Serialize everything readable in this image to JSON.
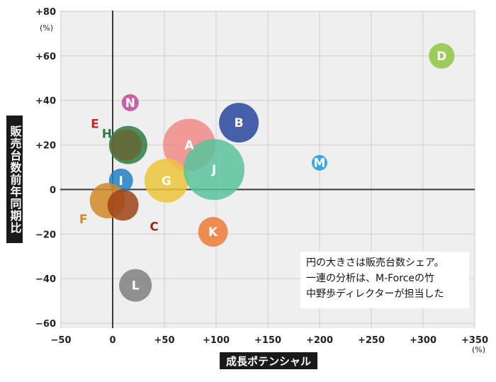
{
  "chart_data": {
    "type": "scatter",
    "subtype": "bubble",
    "xlabel": "成長ポテンシャル",
    "ylabel": "販売台数前年同期比",
    "x_unit": "(%)",
    "y_unit": "(%)",
    "xlim": [
      -50,
      350
    ],
    "ylim": [
      -60,
      80
    ],
    "x_ticks": [
      "−50",
      "0",
      "+50",
      "+100",
      "+150",
      "+200",
      "+250",
      "+300",
      "+350"
    ],
    "y_ticks": [
      "+80",
      "+60",
      "+40",
      "+20",
      "0",
      "−20",
      "−40",
      "−60"
    ],
    "grid": true,
    "note": [
      "円の大きさは販売台数シェア。",
      "一連の分析は、M-Forceの竹",
      "中野歩ディレクターが担当した"
    ],
    "points": [
      {
        "label": "N",
        "x": 17,
        "y": 39,
        "share": 12,
        "color": "#c2479a",
        "label_pos": "inside"
      },
      {
        "label": "H",
        "x": 15,
        "y": 20,
        "share": 27,
        "color": "#2f7a45",
        "label_pos": "outside"
      },
      {
        "label": "A",
        "x": 74,
        "y": 20,
        "share": 37,
        "color": "#ee8b86",
        "label_pos": "inside"
      },
      {
        "label": "B",
        "x": 122,
        "y": 30,
        "share": 28,
        "color": "#27469b",
        "label_pos": "inside"
      },
      {
        "label": "G",
        "x": 52,
        "y": 4,
        "share": 31,
        "color": "#ecc63b",
        "label_pos": "inside"
      },
      {
        "label": "J",
        "x": 98,
        "y": 9,
        "share": 43,
        "color": "#59c39b",
        "label_pos": "inside"
      },
      {
        "label": "E",
        "x": 13,
        "y": 20,
        "share": 22,
        "color": "#666633",
        "label_pos": "outside"
      },
      {
        "label": "I",
        "x": 8,
        "y": 4,
        "share": 17,
        "color": "#1f80c4",
        "label_pos": "inside"
      },
      {
        "label": "F",
        "x": -5,
        "y": -5,
        "share": 25,
        "color": "#d08a27",
        "label_pos": "outside"
      },
      {
        "label": "C",
        "x": 10,
        "y": -7,
        "share": 22,
        "color": "#9e4417",
        "label_pos": "outside"
      },
      {
        "label": "K",
        "x": 97,
        "y": -19,
        "share": 21,
        "color": "#ee7a36",
        "label_pos": "inside"
      },
      {
        "label": "L",
        "x": 22,
        "y": -43,
        "share": 23,
        "color": "#7f7f7f",
        "label_pos": "inside"
      },
      {
        "label": "M",
        "x": 200,
        "y": 12,
        "share": 11,
        "color": "#1a9be0",
        "label_pos": "inside"
      },
      {
        "label": "D",
        "x": 318,
        "y": 60,
        "share": 18,
        "color": "#8dc63f",
        "label_pos": "inside"
      }
    ],
    "outside_label_colors": {
      "H": "#2f7a45",
      "E": "#c62828",
      "F": "#d08a27",
      "C": "#9e2a1a"
    }
  }
}
